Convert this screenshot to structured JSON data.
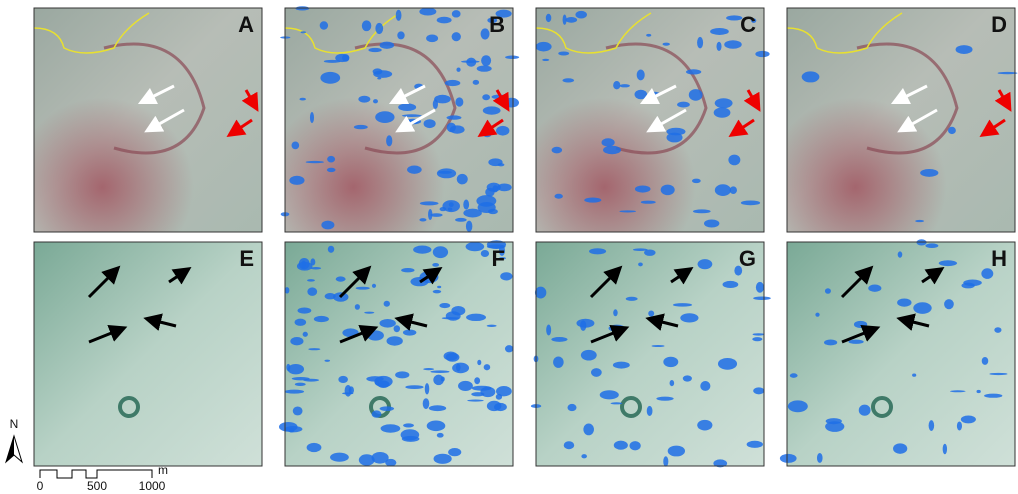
{
  "panels": [
    {
      "label": "A"
    },
    {
      "label": "B"
    },
    {
      "label": "C"
    },
    {
      "label": "D"
    },
    {
      "label": "E"
    },
    {
      "label": "F"
    },
    {
      "label": "G"
    },
    {
      "label": "H"
    }
  ],
  "north": "N",
  "scale": {
    "labels": [
      "0",
      "500",
      "1000"
    ],
    "unit": "m"
  }
}
